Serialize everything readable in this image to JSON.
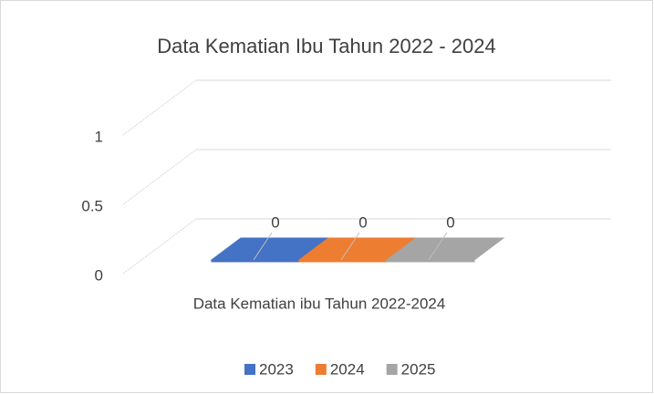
{
  "chart_data": {
    "type": "bar3d",
    "title": "Data Kematian Ibu Tahun 2022 - 2024",
    "categories": [
      "Data Kematian ibu Tahun 2022-2024"
    ],
    "series": [
      {
        "name": "2023",
        "color": "#4472c4",
        "values": [
          0
        ]
      },
      {
        "name": "2024",
        "color": "#ed7d31",
        "values": [
          0
        ]
      },
      {
        "name": "2025",
        "color": "#a5a5a5",
        "values": [
          0
        ]
      }
    ],
    "ylim": [
      0,
      1
    ],
    "yticks": [
      0,
      0.5,
      1
    ],
    "grid": true,
    "legend": "bottom",
    "data_labels": true
  }
}
